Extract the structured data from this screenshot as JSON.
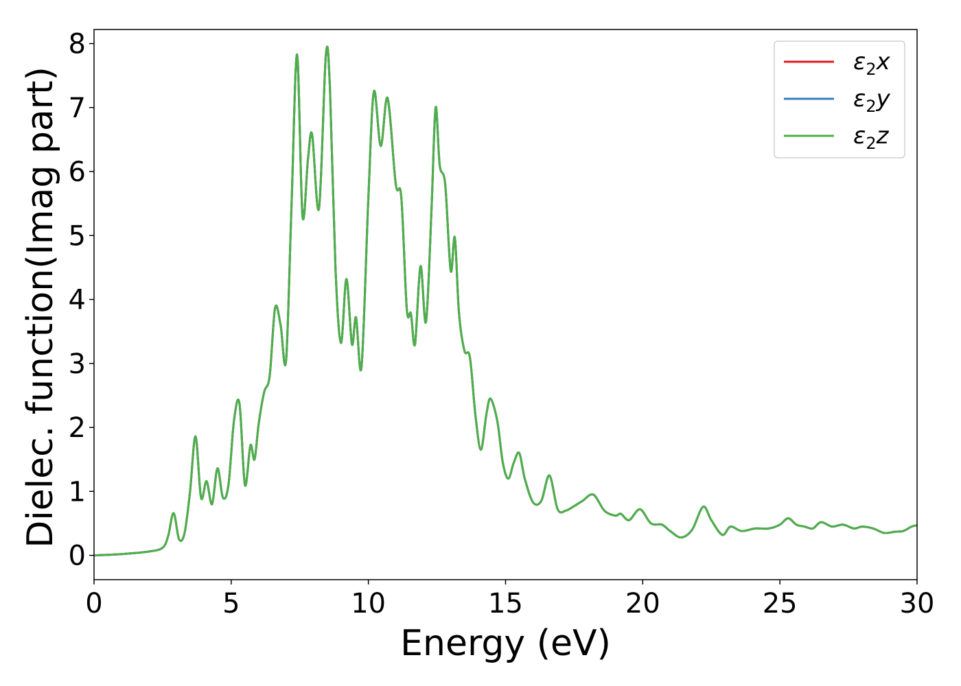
{
  "chart_data": {
    "type": "line",
    "title": "",
    "xlabel": "Energy (eV)",
    "ylabel": "Dielec. function(Imag part)",
    "xlim": [
      0,
      30
    ],
    "ylim": [
      -0.38,
      8.22
    ],
    "xticks": [
      0,
      5,
      10,
      15,
      20,
      25,
      30
    ],
    "yticks": [
      0,
      1,
      2,
      3,
      4,
      5,
      6,
      7,
      8
    ],
    "grid": false,
    "legend_position": "top-right",
    "series": [
      {
        "name": "x",
        "legend_main": "ε",
        "legend_sub": "2",
        "legend_var": "x",
        "color": "#e41a1c"
      },
      {
        "name": "y",
        "legend_main": "ε",
        "legend_sub": "2",
        "legend_var": "y",
        "color": "#377eb8"
      },
      {
        "name": "z",
        "legend_main": "ε",
        "legend_sub": "2",
        "legend_var": "z",
        "color": "#4daf4a"
      }
    ],
    "x": [
      0,
      1.0,
      2.0,
      2.5,
      2.7,
      2.9,
      3.1,
      3.3,
      3.5,
      3.7,
      3.9,
      4.1,
      4.3,
      4.5,
      4.7,
      4.9,
      5.1,
      5.3,
      5.5,
      5.7,
      5.85,
      6.0,
      6.2,
      6.4,
      6.6,
      6.8,
      7.0,
      7.2,
      7.4,
      7.6,
      7.8,
      7.95,
      8.2,
      8.45,
      8.6,
      8.8,
      9.0,
      9.2,
      9.4,
      9.55,
      9.75,
      10.0,
      10.2,
      10.45,
      10.7,
      11.0,
      11.2,
      11.4,
      11.55,
      11.7,
      11.9,
      12.1,
      12.3,
      12.45,
      12.6,
      12.8,
      13.0,
      13.15,
      13.3,
      13.5,
      13.7,
      13.9,
      14.1,
      14.3,
      14.45,
      14.7,
      14.9,
      15.1,
      15.3,
      15.5,
      15.7,
      16.0,
      16.3,
      16.6,
      16.9,
      17.2,
      17.5,
      17.8,
      18.2,
      18.6,
      19.0,
      19.2,
      19.5,
      19.9,
      20.3,
      20.7,
      21.0,
      21.4,
      21.8,
      22.2,
      22.5,
      22.9,
      23.2,
      23.6,
      24.1,
      24.6,
      25.0,
      25.3,
      25.6,
      25.9,
      26.2,
      26.5,
      26.9,
      27.3,
      27.7,
      28.0,
      28.4,
      28.8,
      29.2,
      29.5,
      29.8,
      30.0
    ],
    "y": [
      0.0,
      0.02,
      0.06,
      0.12,
      0.3,
      0.66,
      0.25,
      0.35,
      1.0,
      1.86,
      0.9,
      1.16,
      0.8,
      1.36,
      0.9,
      1.1,
      2.1,
      2.38,
      1.1,
      1.72,
      1.5,
      2.05,
      2.55,
      2.8,
      3.87,
      3.6,
      3.05,
      5.5,
      7.83,
      5.3,
      6.2,
      6.58,
      5.42,
      7.82,
      7.3,
      4.5,
      3.32,
      4.32,
      3.3,
      3.72,
      2.95,
      5.6,
      7.25,
      6.4,
      7.15,
      5.8,
      5.6,
      3.85,
      3.78,
      3.3,
      4.52,
      3.65,
      5.4,
      7.0,
      6.1,
      5.8,
      4.45,
      4.97,
      3.8,
      3.2,
      3.1,
      2.2,
      1.65,
      2.2,
      2.45,
      2.1,
      1.45,
      1.2,
      1.45,
      1.6,
      1.2,
      0.83,
      0.85,
      1.25,
      0.72,
      0.7,
      0.77,
      0.85,
      0.95,
      0.7,
      0.62,
      0.65,
      0.55,
      0.72,
      0.5,
      0.48,
      0.38,
      0.28,
      0.4,
      0.76,
      0.55,
      0.32,
      0.45,
      0.38,
      0.42,
      0.42,
      0.48,
      0.58,
      0.48,
      0.45,
      0.42,
      0.52,
      0.45,
      0.48,
      0.42,
      0.45,
      0.42,
      0.35,
      0.37,
      0.38,
      0.45,
      0.47
    ]
  }
}
